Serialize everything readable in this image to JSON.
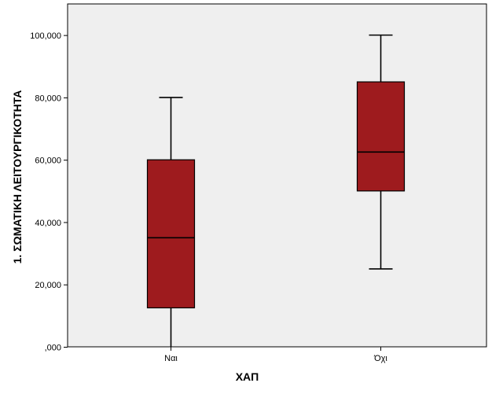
{
  "chart_data": {
    "type": "boxplot",
    "title": "",
    "xlabel": "ΧΑΠ",
    "ylabel": "1. ΣΩΜΑΤΙΚΗ ΛΕΙΤΟΥΡΓΙΚΟΤΗΤΑ",
    "ylim": [
      0,
      110
    ],
    "yticks": [
      0,
      20,
      40,
      60,
      80,
      100
    ],
    "ytick_labels": [
      ",000",
      "20,000",
      "40,000",
      "60,000",
      "80,000",
      "100,000"
    ],
    "categories": [
      "Ναι",
      "Όχι"
    ],
    "boxes": [
      {
        "category": "Ναι",
        "whisker_low": 0,
        "q1": 12.5,
        "median": 35,
        "q3": 60,
        "whisker_high": 80
      },
      {
        "category": "Όχι",
        "whisker_low": 25,
        "q1": 50,
        "median": 62.5,
        "q3": 85,
        "whisker_high": 100
      }
    ],
    "box_color": "#9e1b1e",
    "plot_background": "#efefef",
    "grid": false,
    "legend": "none"
  }
}
